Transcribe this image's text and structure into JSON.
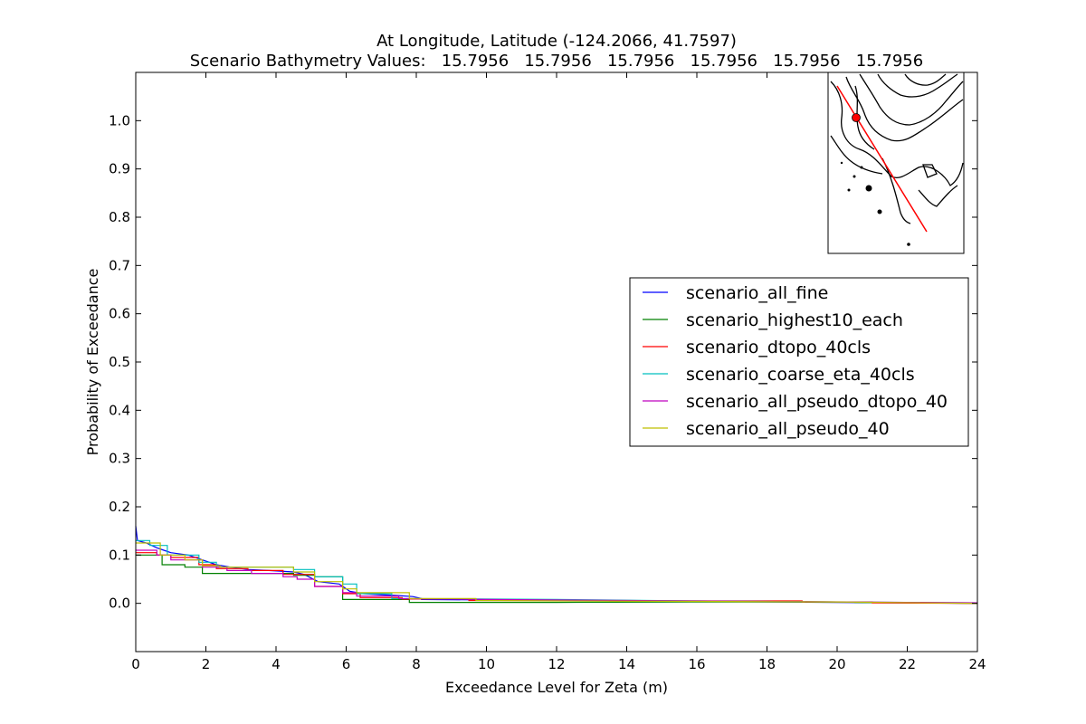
{
  "chart_data": {
    "type": "line",
    "title": "At Longitude, Latitude (-124.2066,  41.7597)",
    "subtitle": "Scenario Bathymetry Values:   15.7956   15.7956   15.7956   15.7956   15.7956   15.7956",
    "xlabel": "Exceedance Level for Zeta (m)",
    "ylabel": "Probability of Exceedance",
    "xlim": [
      0,
      24
    ],
    "ylim": [
      -0.1,
      1.1
    ],
    "x_ticks": [
      "0",
      "2",
      "4",
      "6",
      "8",
      "10",
      "12",
      "14",
      "16",
      "18",
      "20",
      "22",
      "24"
    ],
    "y_ticks": [
      "0.0",
      "0.1",
      "0.2",
      "0.3",
      "0.4",
      "0.5",
      "0.6",
      "0.7",
      "0.8",
      "0.9",
      "1.0"
    ],
    "grid": false,
    "legend_position": "right",
    "series": [
      {
        "name": "scenario_all_fine",
        "color": "#0000ff",
        "points": [
          [
            0,
            0.16
          ],
          [
            0.05,
            0.13
          ],
          [
            0.3,
            0.125
          ],
          [
            0.6,
            0.115
          ],
          [
            0.8,
            0.11
          ],
          [
            1.0,
            0.105
          ],
          [
            1.5,
            0.1
          ],
          [
            1.9,
            0.09
          ],
          [
            2.3,
            0.08
          ],
          [
            2.7,
            0.075
          ],
          [
            3.2,
            0.07
          ],
          [
            3.8,
            0.068
          ],
          [
            4.5,
            0.065
          ],
          [
            4.8,
            0.06
          ],
          [
            5.2,
            0.045
          ],
          [
            5.8,
            0.04
          ],
          [
            6.1,
            0.025
          ],
          [
            6.5,
            0.02
          ],
          [
            7.0,
            0.018
          ],
          [
            7.5,
            0.016
          ],
          [
            7.9,
            0.014
          ],
          [
            8.15,
            0.01
          ],
          [
            8.15,
            0.008
          ],
          [
            12,
            0.006
          ],
          [
            16,
            0.004
          ],
          [
            20,
            0.002
          ],
          [
            24,
            0.0
          ]
        ]
      },
      {
        "name": "scenario_highest10_each",
        "color": "#008000",
        "points": [
          [
            0,
            0.1
          ],
          [
            0.75,
            0.1
          ],
          [
            0.75,
            0.08
          ],
          [
            1.4,
            0.08
          ],
          [
            1.4,
            0.075
          ],
          [
            1.9,
            0.075
          ],
          [
            1.9,
            0.062
          ],
          [
            4.5,
            0.062
          ],
          [
            4.5,
            0.058
          ],
          [
            5.1,
            0.058
          ],
          [
            5.1,
            0.055
          ],
          [
            5.9,
            0.055
          ],
          [
            5.9,
            0.008
          ],
          [
            7.8,
            0.008
          ],
          [
            7.8,
            0.002
          ],
          [
            12,
            0.002
          ],
          [
            16,
            0.003
          ],
          [
            20.5,
            0.003
          ],
          [
            20.5,
            0.002
          ],
          [
            24,
            0.0
          ]
        ]
      },
      {
        "name": "scenario_dtopo_40cls",
        "color": "#ff0000",
        "points": [
          [
            0,
            0.105
          ],
          [
            0.6,
            0.105
          ],
          [
            0.6,
            0.1
          ],
          [
            1.0,
            0.1
          ],
          [
            1.0,
            0.095
          ],
          [
            1.8,
            0.095
          ],
          [
            1.8,
            0.08
          ],
          [
            2.3,
            0.08
          ],
          [
            2.3,
            0.072
          ],
          [
            3.2,
            0.072
          ],
          [
            3.2,
            0.068
          ],
          [
            4.2,
            0.068
          ],
          [
            4.2,
            0.06
          ],
          [
            5.1,
            0.06
          ],
          [
            5.1,
            0.035
          ],
          [
            5.9,
            0.035
          ],
          [
            5.9,
            0.02
          ],
          [
            6.4,
            0.02
          ],
          [
            6.4,
            0.012
          ],
          [
            7.6,
            0.012
          ],
          [
            7.6,
            0.009
          ],
          [
            9.5,
            0.009
          ],
          [
            9.5,
            0.006
          ],
          [
            13.5,
            0.006
          ],
          [
            13.5,
            0.005
          ],
          [
            19,
            0.005
          ],
          [
            19,
            0.003
          ],
          [
            21,
            0.003
          ],
          [
            21,
            0.001
          ],
          [
            24,
            0.0
          ]
        ]
      },
      {
        "name": "scenario_coarse_eta_40cls",
        "color": "#00bfbf",
        "points": [
          [
            0,
            0.13
          ],
          [
            0.4,
            0.13
          ],
          [
            0.4,
            0.12
          ],
          [
            0.9,
            0.12
          ],
          [
            0.9,
            0.1
          ],
          [
            1.8,
            0.1
          ],
          [
            1.8,
            0.085
          ],
          [
            2.3,
            0.085
          ],
          [
            2.3,
            0.075
          ],
          [
            4.5,
            0.075
          ],
          [
            4.5,
            0.07
          ],
          [
            5.1,
            0.07
          ],
          [
            5.1,
            0.055
          ],
          [
            5.9,
            0.055
          ],
          [
            5.9,
            0.04
          ],
          [
            6.3,
            0.04
          ],
          [
            6.3,
            0.02
          ],
          [
            7.3,
            0.02
          ],
          [
            7.3,
            0.01
          ],
          [
            12,
            0.008
          ],
          [
            16,
            0.005
          ],
          [
            20,
            0.003
          ],
          [
            24,
            0.001
          ]
        ]
      },
      {
        "name": "scenario_all_pseudo_dtopo_40",
        "color": "#bf00bf",
        "points": [
          [
            0,
            0.11
          ],
          [
            0.6,
            0.11
          ],
          [
            0.6,
            0.1
          ],
          [
            1.0,
            0.1
          ],
          [
            1.0,
            0.09
          ],
          [
            1.9,
            0.09
          ],
          [
            1.9,
            0.075
          ],
          [
            2.6,
            0.075
          ],
          [
            2.6,
            0.068
          ],
          [
            3.3,
            0.068
          ],
          [
            3.3,
            0.062
          ],
          [
            4.2,
            0.062
          ],
          [
            4.2,
            0.055
          ],
          [
            4.6,
            0.055
          ],
          [
            4.6,
            0.05
          ],
          [
            5.1,
            0.05
          ],
          [
            5.1,
            0.035
          ],
          [
            5.9,
            0.035
          ],
          [
            5.9,
            0.022
          ],
          [
            6.3,
            0.022
          ],
          [
            6.3,
            0.015
          ],
          [
            7.5,
            0.015
          ],
          [
            7.5,
            0.01
          ],
          [
            10,
            0.008
          ],
          [
            14,
            0.006
          ],
          [
            18,
            0.004
          ],
          [
            24,
            0.001
          ]
        ]
      },
      {
        "name": "scenario_all_pseudo_40",
        "color": "#bfbf00",
        "points": [
          [
            0,
            0.125
          ],
          [
            0.7,
            0.125
          ],
          [
            0.7,
            0.1
          ],
          [
            1.4,
            0.1
          ],
          [
            1.4,
            0.09
          ],
          [
            1.9,
            0.09
          ],
          [
            1.9,
            0.078
          ],
          [
            2.4,
            0.078
          ],
          [
            2.4,
            0.075
          ],
          [
            4.5,
            0.075
          ],
          [
            4.5,
            0.065
          ],
          [
            5.1,
            0.065
          ],
          [
            5.1,
            0.045
          ],
          [
            5.9,
            0.045
          ],
          [
            5.9,
            0.03
          ],
          [
            6.3,
            0.03
          ],
          [
            6.3,
            0.022
          ],
          [
            7.8,
            0.022
          ],
          [
            7.8,
            0.01
          ],
          [
            9.7,
            0.01
          ],
          [
            9.7,
            0.006
          ],
          [
            12,
            0.005
          ],
          [
            16,
            0.004
          ],
          [
            20,
            0.003
          ],
          [
            24,
            0.0
          ]
        ]
      }
    ],
    "inset": {
      "description": "map inset (coastline contours with transect and location marker)",
      "transect_color": "#ff0000",
      "marker_color": "#ff0000"
    }
  }
}
